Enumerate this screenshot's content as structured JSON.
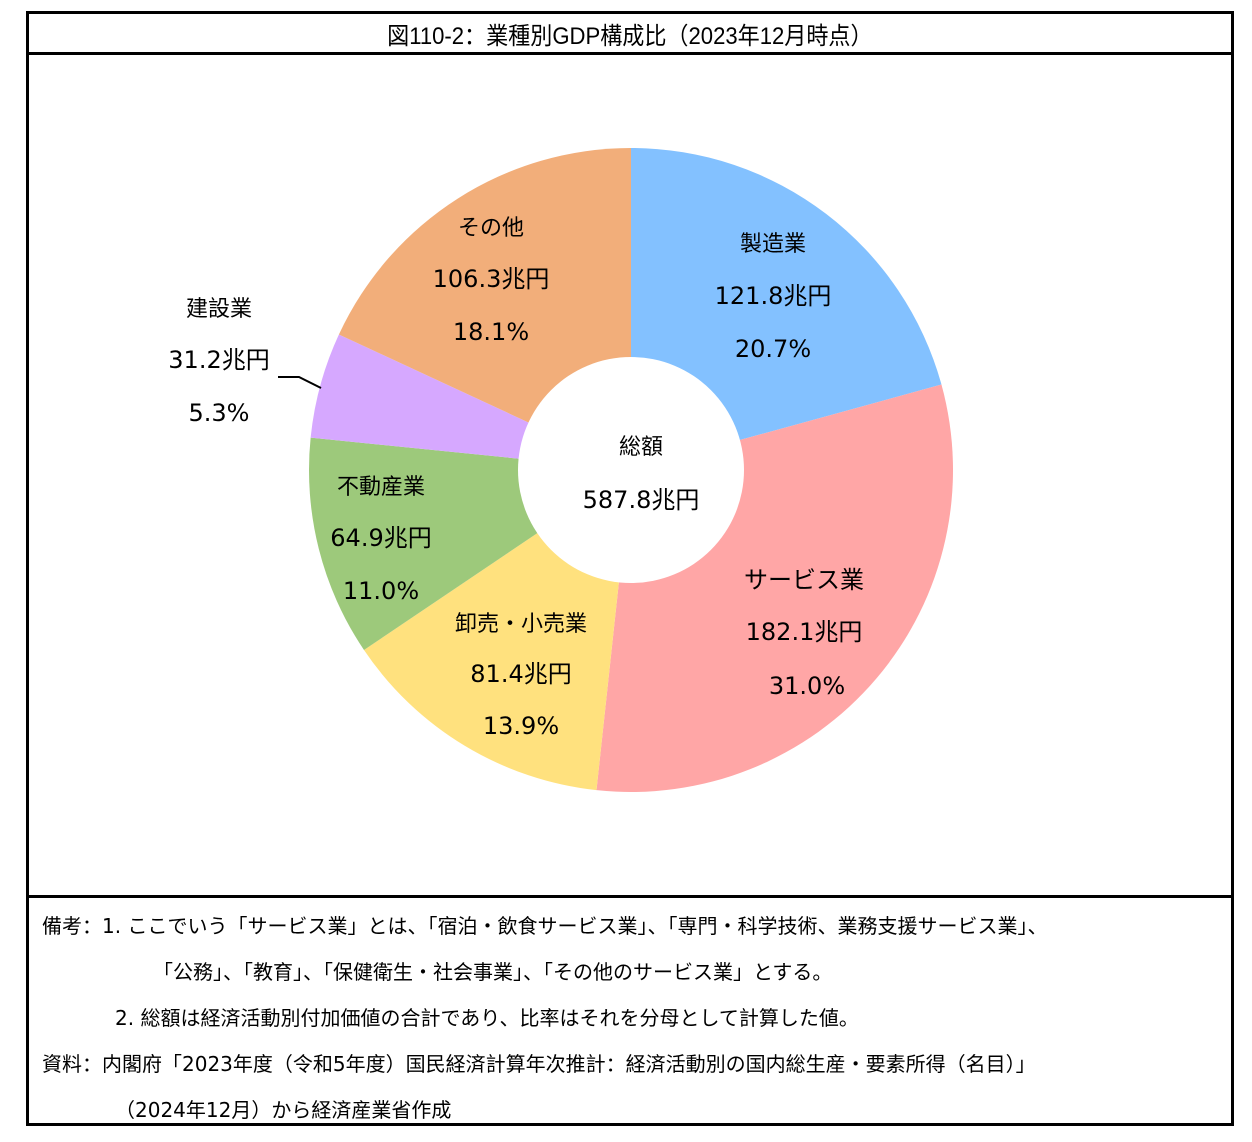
{
  "title": "図110-2：業種別GDP構成比（2023年12月時点）",
  "chart_data": {
    "type": "pie",
    "subtype": "donut",
    "title": "図110-2：業種別GDP構成比（2023年12月時点）",
    "unit": "兆円",
    "center_label": {
      "line1": "総額",
      "line2": "587.8兆円"
    },
    "total": 587.8,
    "start_angle": "12 o'clock",
    "direction": "clockwise",
    "categories": [
      "製造業",
      "サービス業",
      "卸売・小売業",
      "不動産業",
      "建設業",
      "その他"
    ],
    "values": [
      121.8,
      182.1,
      81.4,
      64.9,
      31.2,
      106.3
    ],
    "percentages": [
      20.7,
      31.0,
      13.9,
      11.0,
      5.3,
      18.1
    ],
    "colors": [
      "#83C1FF",
      "#FFA6A6",
      "#FFE17E",
      "#9DC97B",
      "#D6A8FF",
      "#F2AE7A"
    ],
    "legend": "none (data labels on slices)"
  },
  "slices": [
    {
      "name": "製造業",
      "amount": "121.8兆円",
      "percent": "20.7%"
    },
    {
      "name": "サービス業",
      "amount": "182.1兆円",
      "percent": "31.0%"
    },
    {
      "name": "卸売・小売業",
      "amount": "81.4兆円",
      "percent": "13.9%"
    },
    {
      "name": "不動産業",
      "amount": "64.9兆円",
      "percent": "11.0%"
    },
    {
      "name": "建設業",
      "amount": "31.2兆円",
      "percent": "5.3%"
    },
    {
      "name": "その他",
      "amount": "106.3兆円",
      "percent": "18.1%"
    }
  ],
  "center": {
    "label": "総額",
    "value": "587.8兆円"
  },
  "notes": {
    "line1": "備考：1. ここでいう「サービス業」とは、「宿泊・飲食サービス業」、「専門・科学技術、業務支援サービス業」、",
    "line2": "「公務」、「教育」、「保健衛生・社会事業」、「その他のサービス業」とする。",
    "line3": "2. 総額は経済活動別付加価値の合計であり、比率はそれを分母として計算した値。",
    "line4": "資料：内閣府「2023年度（令和5年度）国民経済計算年次推計：経済活動別の国内総生産・要素所得（名目）」",
    "line5": "（2024年12月）から経済産業省作成"
  }
}
